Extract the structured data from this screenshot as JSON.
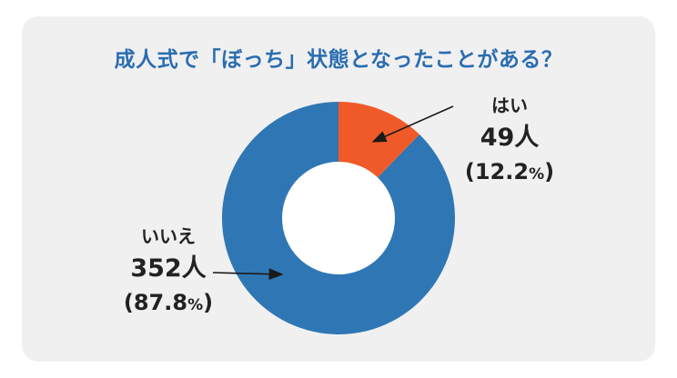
{
  "title": "成人式で「ぼっち」状態となったことがある？",
  "colors": {
    "title": "#2a6db0",
    "yes": "#f05a28",
    "no": "#2f77b4",
    "hole": "#ffffff",
    "arrow": "#1a1a1a"
  },
  "chart_data": {
    "type": "pie",
    "style": "donut",
    "title": "成人式で「ぼっち」状態となったことがある？",
    "categories": [
      "はい",
      "いいえ"
    ],
    "values": [
      49,
      352
    ],
    "percent": [
      12.2,
      87.8
    ],
    "labels": [
      {
        "name": "はい",
        "count": "49人",
        "pct_num": "12.2",
        "pct_sym": "%"
      },
      {
        "name": "いいえ",
        "count": "352人",
        "pct_num": "87.8",
        "pct_sym": "%"
      }
    ]
  }
}
